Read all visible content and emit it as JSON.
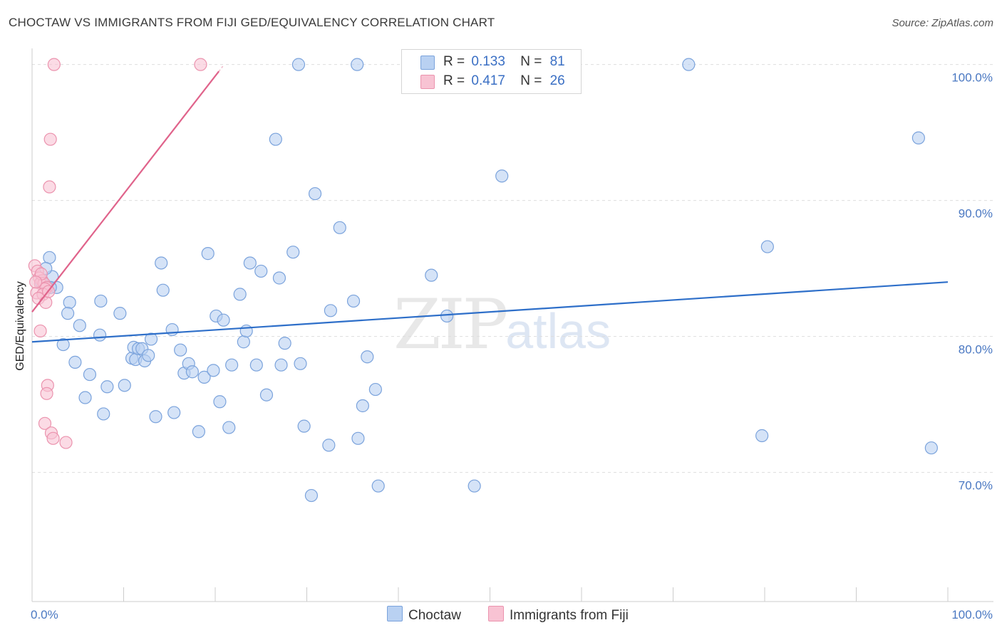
{
  "title": "CHOCTAW VS IMMIGRANTS FROM FIJI GED/EQUIVALENCY CORRELATION CHART",
  "source": "Source: ZipAtlas.com",
  "watermark": {
    "zip": "ZIP",
    "atlas": "atlas"
  },
  "legend": {
    "r_label": "R =",
    "n_label": "N =",
    "rows": [
      {
        "r": "0.133",
        "n": "81"
      },
      {
        "r": "0.417",
        "n": "26"
      }
    ]
  },
  "bottom_legend": [
    {
      "label": "Choctaw"
    },
    {
      "label": "Immigrants from Fiji"
    }
  ],
  "colors": {
    "blue_fill": "#b9d1f2",
    "blue_stroke": "#7ba3dc",
    "blue_line": "#2e6fc9",
    "pink_fill": "#f8c3d3",
    "pink_stroke": "#eb93ae",
    "pink_line": "#e0638b",
    "grid": "#dddddd",
    "axis_text": "#4a78c2"
  },
  "chart_data": {
    "type": "scatter",
    "title": "CHOCTAW VS IMMIGRANTS FROM FIJI GED/EQUIVALENCY CORRELATION CHART",
    "xlabel": "",
    "ylabel": "GED/Equivalency",
    "xlim": [
      0,
      100
    ],
    "ylim": [
      60.5,
      101.5
    ],
    "x_tick_labels": [
      {
        "value": 0,
        "label": "0.0%"
      },
      {
        "value": 100,
        "label": "100.0%"
      }
    ],
    "y_tick_labels": [
      {
        "value": 100,
        "label": "100.0%"
      },
      {
        "value": 90,
        "label": "90.0%"
      },
      {
        "value": 80,
        "label": "80.0%"
      },
      {
        "value": 70,
        "label": "70.0%"
      }
    ],
    "y_gridlines": [
      100,
      90,
      80,
      70
    ],
    "x_minor_ticks": [
      10,
      20,
      30,
      40,
      50,
      60,
      70,
      80,
      90,
      100
    ],
    "series": [
      {
        "name": "Choctaw",
        "r": 0.133,
        "n": 81,
        "trend": {
          "x": [
            0,
            100
          ],
          "y": [
            79.6,
            84.0
          ]
        },
        "points": [
          [
            1.9,
            85.8
          ],
          [
            2.2,
            84.4
          ],
          [
            2.7,
            83.6
          ],
          [
            2.0,
            83.6
          ],
          [
            4.1,
            82.5
          ],
          [
            3.9,
            81.7
          ],
          [
            5.2,
            80.8
          ],
          [
            3.4,
            79.4
          ],
          [
            4.7,
            78.1
          ],
          [
            6.3,
            77.2
          ],
          [
            5.8,
            75.5
          ],
          [
            7.5,
            82.6
          ],
          [
            7.4,
            80.1
          ],
          [
            8.2,
            76.3
          ],
          [
            7.8,
            74.3
          ],
          [
            9.6,
            81.7
          ],
          [
            10.1,
            76.4
          ],
          [
            10.9,
            78.4
          ],
          [
            11.3,
            78.3
          ],
          [
            11.1,
            79.2
          ],
          [
            11.6,
            79.1
          ],
          [
            12.0,
            79.1
          ],
          [
            12.3,
            78.2
          ],
          [
            12.7,
            78.6
          ],
          [
            13.0,
            79.8
          ],
          [
            13.5,
            74.1
          ],
          [
            14.1,
            85.4
          ],
          [
            14.3,
            83.4
          ],
          [
            15.3,
            80.5
          ],
          [
            15.5,
            74.4
          ],
          [
            16.2,
            79.0
          ],
          [
            16.6,
            77.3
          ],
          [
            17.1,
            78.0
          ],
          [
            17.5,
            77.4
          ],
          [
            18.2,
            73.0
          ],
          [
            18.8,
            77.0
          ],
          [
            19.2,
            86.1
          ],
          [
            19.8,
            77.5
          ],
          [
            20.1,
            81.5
          ],
          [
            20.5,
            75.2
          ],
          [
            20.9,
            81.2
          ],
          [
            21.5,
            73.3
          ],
          [
            21.8,
            77.9
          ],
          [
            22.7,
            83.1
          ],
          [
            23.1,
            79.6
          ],
          [
            23.4,
            80.4
          ],
          [
            23.8,
            85.4
          ],
          [
            24.5,
            77.9
          ],
          [
            25.0,
            84.8
          ],
          [
            25.6,
            75.7
          ],
          [
            26.6,
            94.5
          ],
          [
            27.0,
            84.3
          ],
          [
            27.2,
            77.9
          ],
          [
            27.6,
            79.5
          ],
          [
            28.5,
            86.2
          ],
          [
            29.1,
            100.0
          ],
          [
            29.3,
            78.0
          ],
          [
            29.7,
            73.4
          ],
          [
            30.5,
            68.3
          ],
          [
            30.9,
            90.5
          ],
          [
            32.4,
            72.0
          ],
          [
            32.6,
            81.9
          ],
          [
            33.6,
            88.0
          ],
          [
            35.1,
            82.6
          ],
          [
            35.5,
            100.0
          ],
          [
            35.6,
            72.5
          ],
          [
            36.1,
            74.9
          ],
          [
            36.6,
            78.5
          ],
          [
            37.5,
            76.1
          ],
          [
            37.8,
            69.0
          ],
          [
            43.6,
            84.5
          ],
          [
            45.3,
            81.5
          ],
          [
            48.3,
            69.0
          ],
          [
            51.3,
            91.8
          ],
          [
            71.7,
            100.0
          ],
          [
            80.3,
            86.6
          ],
          [
            79.7,
            72.7
          ],
          [
            96.8,
            94.6
          ],
          [
            98.2,
            71.8
          ],
          [
            1.0,
            84.0
          ],
          [
            1.5,
            85.0
          ]
        ]
      },
      {
        "name": "Immigrants from Fiji",
        "r": 0.417,
        "n": 26,
        "trend": {
          "x": [
            0,
            20.4
          ],
          "y": [
            81.8,
            99.5
          ]
        },
        "points": [
          [
            2.4,
            100.0
          ],
          [
            18.4,
            100.0
          ],
          [
            2.0,
            94.5
          ],
          [
            1.9,
            91.0
          ],
          [
            0.3,
            85.2
          ],
          [
            0.6,
            84.8
          ],
          [
            0.8,
            84.3
          ],
          [
            1.1,
            84.1
          ],
          [
            0.9,
            83.9
          ],
          [
            1.3,
            83.9
          ],
          [
            1.6,
            83.6
          ],
          [
            1.4,
            83.5
          ],
          [
            0.5,
            83.2
          ],
          [
            1.2,
            83.1
          ],
          [
            0.7,
            82.8
          ],
          [
            1.5,
            82.5
          ],
          [
            0.9,
            80.4
          ],
          [
            1.7,
            76.4
          ],
          [
            1.6,
            75.8
          ],
          [
            1.4,
            73.6
          ],
          [
            2.1,
            72.9
          ],
          [
            2.3,
            72.5
          ],
          [
            3.7,
            72.2
          ],
          [
            1.0,
            84.6
          ],
          [
            1.8,
            83.3
          ],
          [
            0.4,
            84.0
          ]
        ]
      }
    ]
  }
}
